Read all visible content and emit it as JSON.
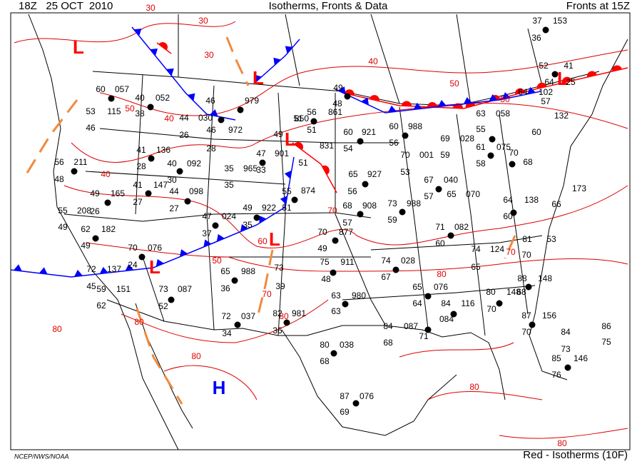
{
  "header": {
    "date": "18Z   25 OCT  2010",
    "title": "Isotherms, Fronts & Data",
    "fronts": "Fronts at 15Z"
  },
  "footer": {
    "credit": "NCEP/NWS/NOAA",
    "legend": "Red - Isotherms (10F)"
  },
  "pressure_centers": [
    "L",
    "L",
    "L",
    "L",
    "L",
    "L",
    "H"
  ],
  "isotherm_labels": [
    "30",
    "30",
    "30",
    "40",
    "50",
    "50",
    "40",
    "40",
    "50",
    "60",
    "70",
    "50",
    "70",
    "80",
    "80",
    "80",
    "80",
    "80",
    "80",
    "70",
    "80"
  ],
  "station_values": [
    "37",
    "153",
    "36",
    "52",
    "41",
    "64",
    "25",
    "64",
    "102",
    "57",
    "132",
    "60",
    "60",
    "057",
    "40",
    "052",
    "115",
    "53",
    "38",
    "46",
    "46",
    "979",
    "49",
    "48",
    "56",
    "861",
    "51",
    "850",
    "51",
    "49",
    "831",
    "60",
    "921",
    "54",
    "60",
    "988",
    "56",
    "69",
    "028",
    "63",
    "058",
    "55",
    "61",
    "075",
    "58",
    "70",
    "68",
    "44",
    "030",
    "26",
    "46",
    "972",
    "28",
    "41",
    "136",
    "28",
    "40",
    "092",
    "47",
    "901",
    "33",
    "35",
    "965",
    "35",
    "51",
    "65",
    "927",
    "56",
    "70",
    "001",
    "53",
    "59",
    "67",
    "040",
    "57",
    "65",
    "070",
    "64",
    "138",
    "60",
    "173",
    "66",
    "56",
    "211",
    "48",
    "49",
    "165",
    "26",
    "41",
    "147",
    "27",
    "44",
    "098",
    "27",
    "30",
    "874",
    "55",
    "55",
    "208",
    "49",
    "62",
    "182",
    "49",
    "47",
    "024",
    "37",
    "49",
    "922",
    "35",
    "51",
    "68",
    "908",
    "57",
    "73",
    "988",
    "59",
    "71",
    "082",
    "60",
    "70",
    "076",
    "24",
    "70",
    "877",
    "49",
    "74",
    "124",
    "65",
    "81",
    "53",
    "70",
    "72",
    "137",
    "45",
    "59",
    "151",
    "62",
    "65",
    "988",
    "36",
    "73",
    "39",
    "75",
    "911",
    "48",
    "74",
    "028",
    "67",
    "88",
    "148",
    "73",
    "087",
    "52",
    "63",
    "980",
    "63",
    "65",
    "076",
    "64",
    "84",
    "116",
    "70",
    "80",
    "148",
    "68",
    "87",
    "156",
    "72",
    "037",
    "34",
    "82",
    "981",
    "36",
    "84",
    "087",
    "68",
    "71",
    "084",
    "70",
    "84",
    "86",
    "75",
    "73",
    "85",
    "146",
    "76",
    "80",
    "038",
    "68",
    "87",
    "076",
    "69"
  ]
}
